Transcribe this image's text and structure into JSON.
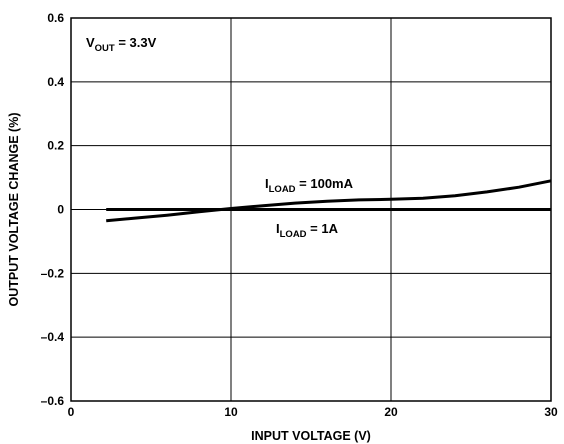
{
  "chart_data": {
    "type": "line",
    "title": "",
    "xlabel": "INPUT VOLTAGE (V)",
    "ylabel": "OUTPUT VOLTAGE CHANGE (%)",
    "xlim": [
      0,
      30
    ],
    "ylim": [
      -0.6,
      0.6
    ],
    "x_ticks": [
      0,
      10,
      20,
      30
    ],
    "x_tick_labels": [
      "0",
      "10",
      "20",
      "30"
    ],
    "y_ticks": [
      -0.6,
      -0.4,
      -0.2,
      0,
      0.2,
      0.4,
      0.6
    ],
    "y_tick_labels": [
      "–0.6",
      "–0.4",
      "–0.2",
      "0",
      "0.2",
      "0.4",
      "0.6"
    ],
    "grid": true,
    "legend": "none",
    "series": [
      {
        "name": "I_LOAD = 100mA",
        "color": "#000000",
        "x": [
          2.2,
          4,
          6,
          8,
          9,
          10,
          12,
          14,
          16,
          18,
          20,
          22,
          24,
          26,
          28,
          30
        ],
        "y": [
          -0.035,
          -0.027,
          -0.018,
          -0.007,
          -0.002,
          0.003,
          0.012,
          0.02,
          0.026,
          0.03,
          0.032,
          0.035,
          0.043,
          0.055,
          0.07,
          0.09
        ]
      },
      {
        "name": "I_LOAD = 1A",
        "color": "#000000",
        "x": [
          2.2,
          30
        ],
        "y": [
          0,
          0
        ]
      }
    ],
    "annotations": {
      "vout": {
        "main": "V",
        "sub": "OUT",
        "rest": " = 3.3V"
      },
      "label_100mA": {
        "main": "I",
        "sub": "LOAD",
        "rest": " = 100mA"
      },
      "label_1A": {
        "main": "I",
        "sub": "LOAD",
        "rest": " = 1A"
      }
    }
  }
}
